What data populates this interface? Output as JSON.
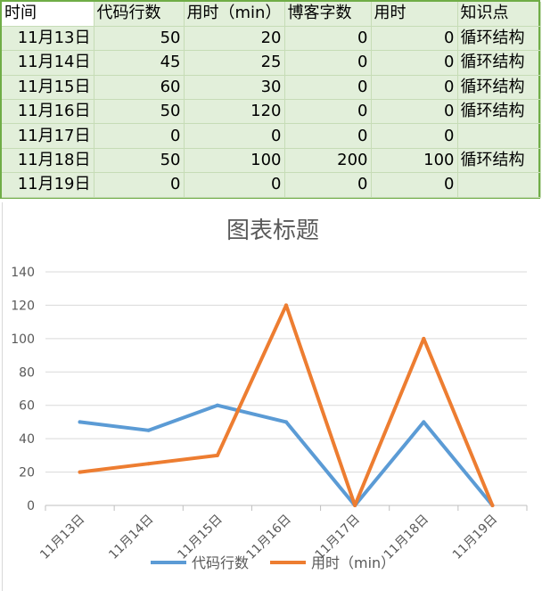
{
  "table": {
    "headers": [
      "时间",
      "代码行数",
      "用时（min）",
      "博客字数",
      "用时",
      "知识点"
    ],
    "rows": [
      [
        "11月13日",
        "50",
        "20",
        "0",
        "0",
        "循环结构"
      ],
      [
        "11月14日",
        "45",
        "25",
        "0",
        "0",
        "循环结构"
      ],
      [
        "11月15日",
        "60",
        "30",
        "0",
        "0",
        "循环结构"
      ],
      [
        "11月16日",
        "50",
        "120",
        "0",
        "0",
        "循环结构"
      ],
      [
        "11月17日",
        "0",
        "0",
        "0",
        "0",
        ""
      ],
      [
        "11月18日",
        "50",
        "100",
        "200",
        "100",
        "循环结构"
      ],
      [
        "11月19日",
        "0",
        "0",
        "0",
        "0",
        ""
      ]
    ]
  },
  "chart_data": {
    "type": "line",
    "title": "图表标题",
    "categories": [
      "11月13日",
      "11月14日",
      "11月15日",
      "11月16日",
      "11月17日",
      "11月18日",
      "11月19日"
    ],
    "series": [
      {
        "name": "代码行数",
        "values": [
          50,
          45,
          60,
          50,
          0,
          50,
          0
        ],
        "color": "#5b9bd5"
      },
      {
        "name": "用时（min）",
        "values": [
          20,
          25,
          30,
          120,
          0,
          100,
          0
        ],
        "color": "#ed7d31"
      }
    ],
    "ylim": [
      0,
      140
    ],
    "yticks": [
      0,
      20,
      40,
      60,
      80,
      100,
      120,
      140
    ],
    "grid": true,
    "legend": "bottom",
    "xlabel": "",
    "ylabel": ""
  }
}
